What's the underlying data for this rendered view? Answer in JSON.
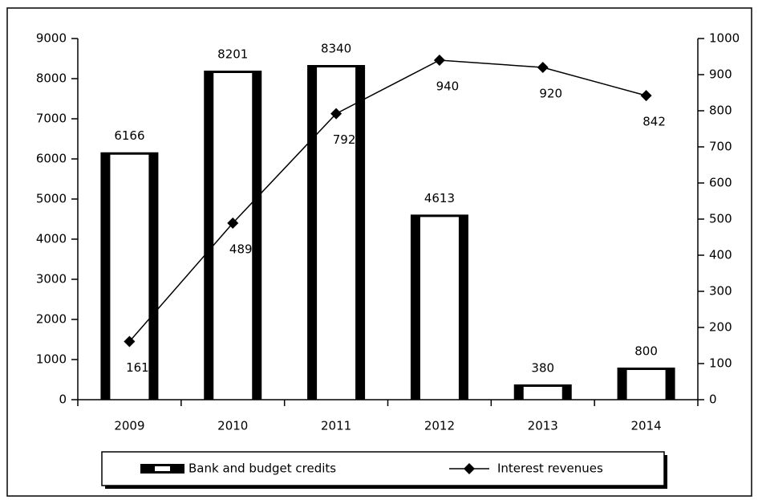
{
  "chart_data": {
    "type": "bar_line",
    "categories": [
      "2009",
      "2010",
      "2011",
      "2012",
      "2013",
      "2014"
    ],
    "series": [
      {
        "name": "Bank and budget credits",
        "type": "bar",
        "color": "#000000",
        "values": [
          6166,
          8201,
          8340,
          4613,
          380,
          800
        ]
      },
      {
        "name": "Interest revenues",
        "type": "line",
        "axis": "y2",
        "color": "#000000",
        "values": [
          161,
          489,
          792,
          940,
          920,
          842
        ]
      }
    ],
    "ylim": [
      0,
      9000
    ],
    "yticks": [
      0,
      1000,
      2000,
      3000,
      4000,
      5000,
      6000,
      7000,
      8000,
      9000
    ],
    "y2lim": [
      0,
      1000
    ],
    "y2ticks": [
      0,
      100,
      200,
      300,
      400,
      500,
      600,
      700,
      800,
      900,
      1000
    ],
    "legend": "bottom",
    "grid": false
  }
}
